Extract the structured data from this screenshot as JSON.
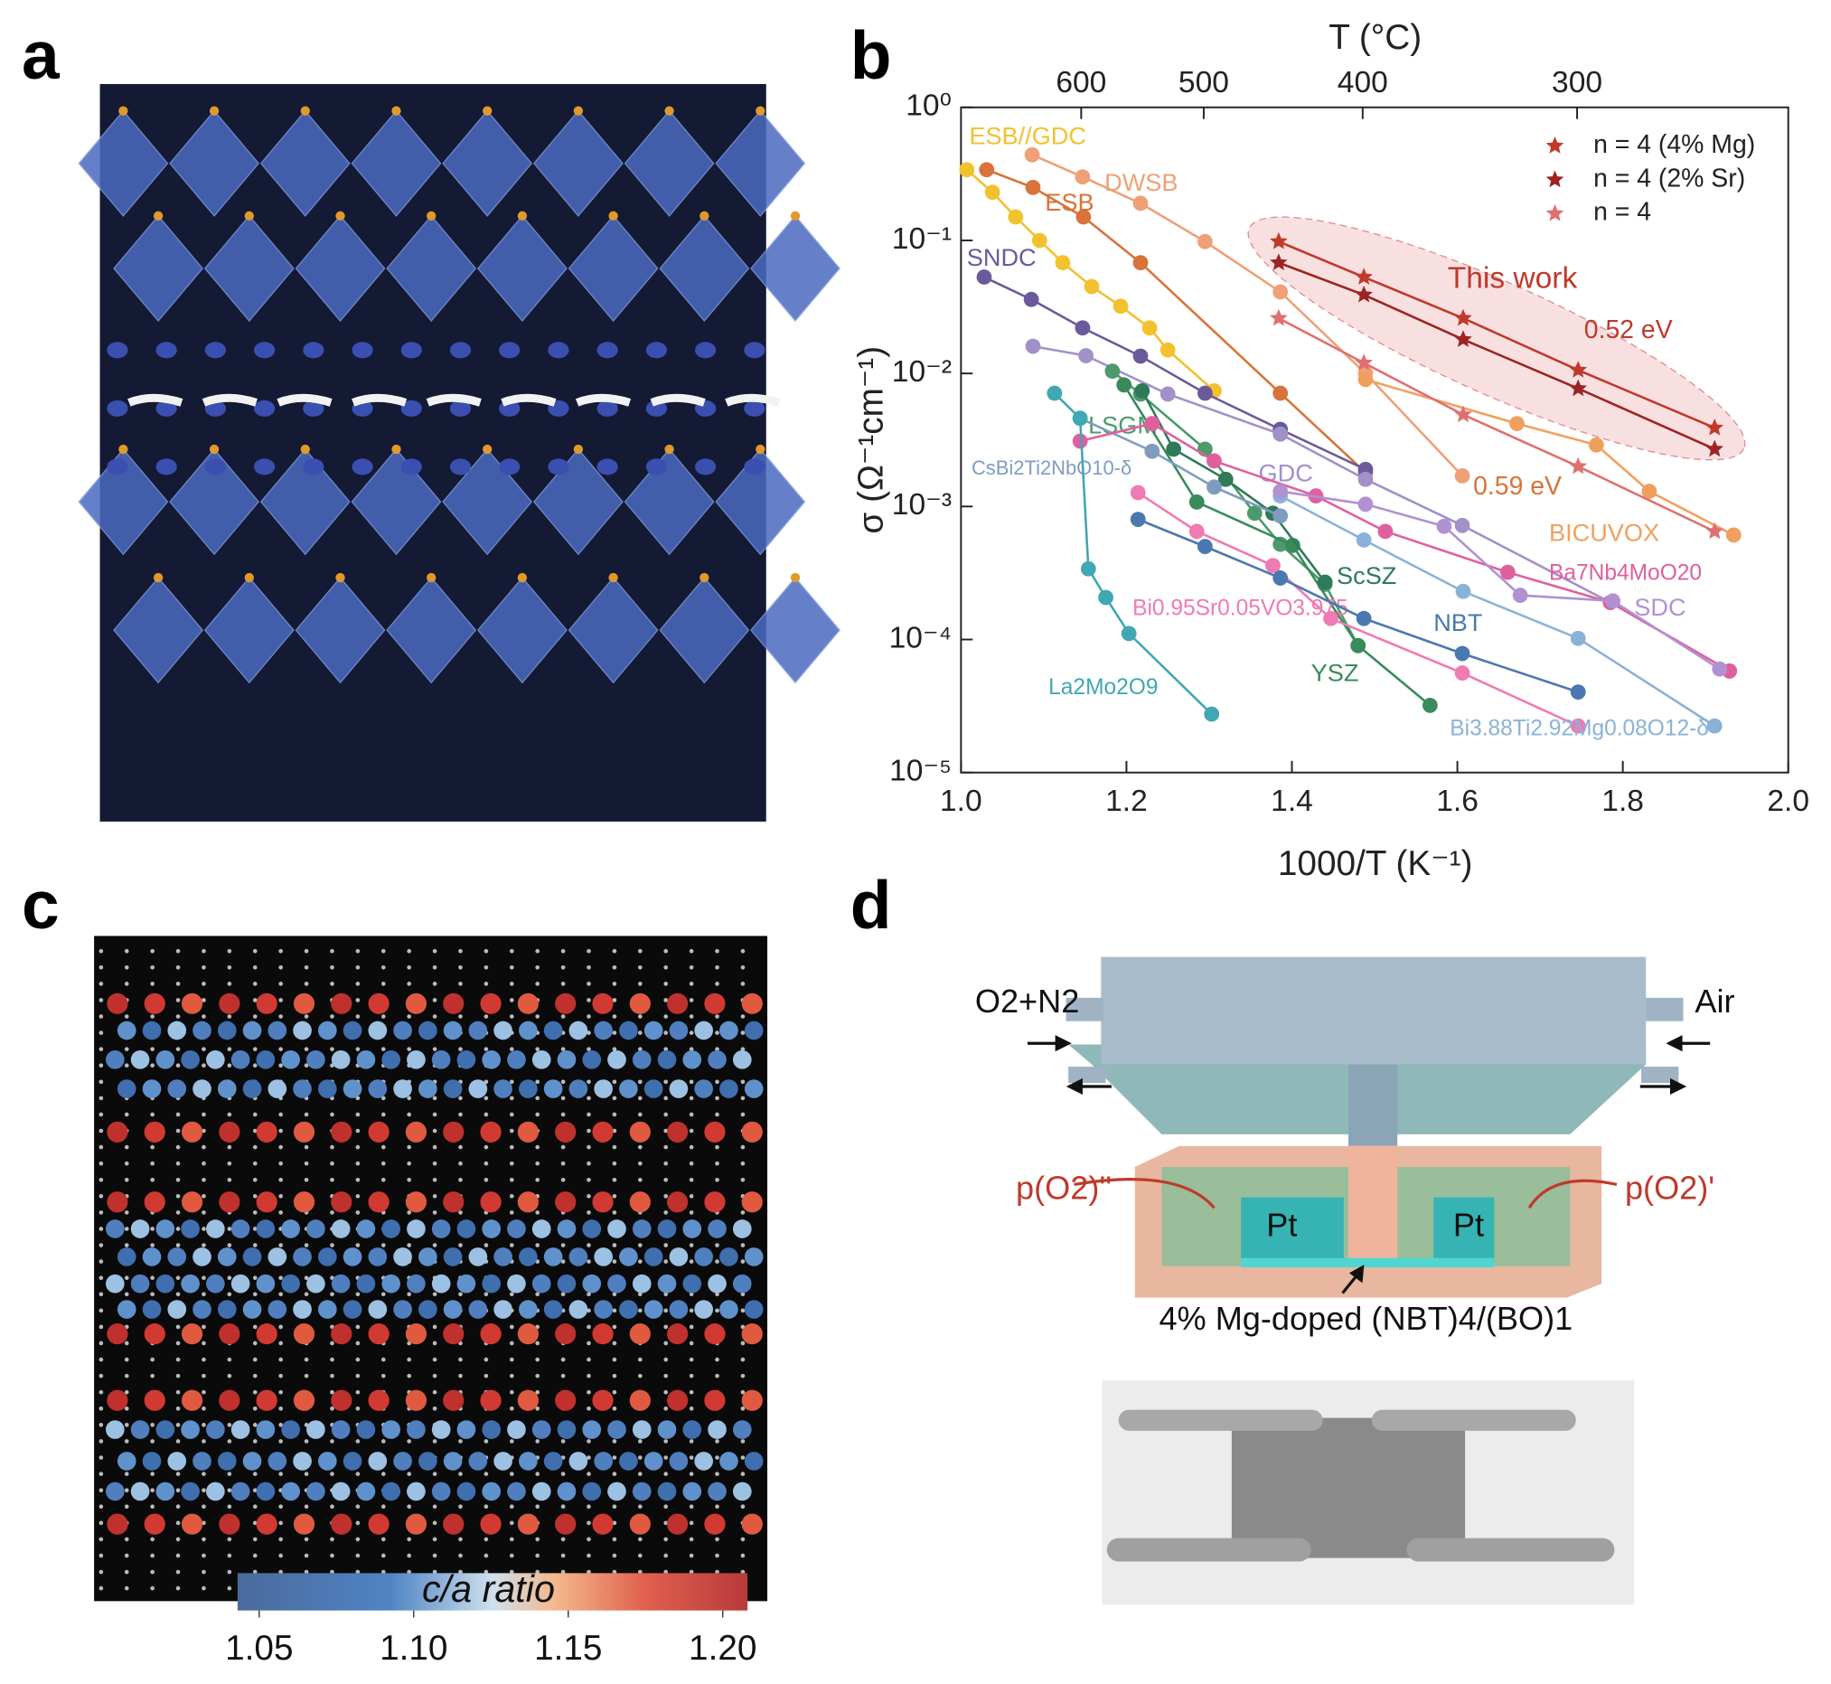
{
  "panel_labels": [
    "a",
    "b",
    "c",
    "d"
  ],
  "chart_data": {
    "type": "line",
    "log_y": true,
    "xlabel": "1000/T (K⁻¹)",
    "ylabel": "σ (Ω⁻¹cm⁻¹)",
    "x2label": "T (°C)",
    "xlim": [
      1,
      2
    ],
    "ylim": [
      1e-05,
      1
    ],
    "xticks": [
      {
        "value": 1,
        "label": "1.0"
      },
      1.2,
      1.4,
      1.6,
      1.8,
      {
        "value": 2,
        "label": "2.0"
      }
    ],
    "x2ticks": [
      600,
      500,
      400,
      300
    ],
    "yticks": [
      {
        "value": 1,
        "label": "10⁰"
      },
      {
        "value": 0.1,
        "label": "10⁻¹"
      },
      {
        "value": 0.01,
        "label": "10⁻²"
      },
      {
        "value": 0.001,
        "label": "10⁻³"
      },
      {
        "value": 0.0001,
        "label": "10⁻⁴"
      },
      {
        "value": 1e-05,
        "label": "10⁻⁵"
      }
    ],
    "legend": "upper right",
    "annotations": [
      "This work",
      "0.52 eV",
      "0.59 eV"
    ],
    "series": [
      {
        "name": "ESB//GDC",
        "color": "#f2c12e",
        "marker": "circle",
        "x": [
          1.007,
          1.038,
          1.066,
          1.095,
          1.123,
          1.158,
          1.193,
          1.228,
          1.25,
          1.306
        ],
        "values": [
          0.34,
          0.23,
          0.15,
          0.1,
          0.068,
          0.045,
          0.032,
          0.022,
          0.015,
          0.0074
        ]
      },
      {
        "name": "ESB",
        "color": "#d8733a",
        "marker": "circle",
        "x": [
          1.031,
          1.087,
          1.148,
          1.217,
          1.386,
          1.489
        ],
        "values": [
          0.34,
          0.25,
          0.15,
          0.068,
          0.0071,
          0.0018
        ]
      },
      {
        "name": "DWSB",
        "color": "#efa077",
        "marker": "circle",
        "x": [
          1.086,
          1.147,
          1.217,
          1.295,
          1.386,
          1.489,
          1.606
        ],
        "values": [
          0.44,
          0.3,
          0.19,
          0.098,
          0.041,
          0.01,
          0.0017
        ]
      },
      {
        "name": "SNDC",
        "color": "#6a5a9c",
        "marker": "circle",
        "x": [
          1.028,
          1.085,
          1.147,
          1.217,
          1.295,
          1.386,
          1.489
        ],
        "values": [
          0.053,
          0.036,
          0.022,
          0.0135,
          0.0071,
          0.0038,
          0.0019
        ]
      },
      {
        "name": "GDC",
        "color": "#a290c8",
        "marker": "circle",
        "x": [
          1.087,
          1.151,
          1.25,
          1.386,
          1.489,
          1.606,
          1.785,
          1.929
        ],
        "values": [
          0.016,
          0.0136,
          0.007,
          0.0035,
          0.0016,
          0.00072,
          0.00019,
          5.8e-05
        ]
      },
      {
        "name": "LSGM",
        "color": "#4c9a6c",
        "marker": "circle",
        "x": [
          1.183,
          1.217,
          1.295,
          1.355,
          1.386,
          1.44,
          1.48
        ],
        "values": [
          0.0104,
          0.007,
          0.0027,
          0.00089,
          0.00052,
          0.00026,
          9e-05
        ]
      },
      {
        "name": "YSZ",
        "color": "#3a8a5c",
        "marker": "circle",
        "x": [
          1.197,
          1.285,
          1.401,
          1.48,
          1.567
        ],
        "values": [
          0.0082,
          0.00108,
          0.00051,
          9e-05,
          3.2e-05
        ]
      },
      {
        "name": "ScSZ",
        "color": "#2f7a58",
        "marker": "circle",
        "x": [
          1.219,
          1.257,
          1.32,
          1.377,
          1.44
        ],
        "values": [
          0.0074,
          0.0027,
          0.0016,
          0.00089,
          0.00027
        ]
      },
      {
        "name": "CsBi2Ti2NbO10-δ",
        "color": "#7f9cc0",
        "marker": "circle",
        "x": [
          1.144,
          1.231,
          1.306,
          1.386
        ],
        "values": [
          0.0046,
          0.0026,
          0.0014,
          0.00085
        ]
      },
      {
        "name": "Ba7Nb4MoO20",
        "color": "#e0609e",
        "marker": "circle",
        "x": [
          1.144,
          1.231,
          1.306,
          1.429,
          1.513,
          1.661,
          1.785,
          1.929
        ],
        "values": [
          0.0031,
          0.0042,
          0.0022,
          0.0012,
          0.00065,
          0.00032,
          0.00019,
          5.8e-05
        ]
      },
      {
        "name": "Bi0.95Sr0.05VO3.975",
        "color": "#f07ab2",
        "marker": "circle",
        "x": [
          1.214,
          1.285,
          1.377,
          1.447,
          1.606,
          1.746
        ],
        "values": [
          0.00127,
          0.00065,
          0.00036,
          0.000144,
          5.6e-05,
          2.24e-05
        ]
      },
      {
        "name": "NBT",
        "color": "#4a78b0",
        "marker": "circle",
        "x": [
          1.214,
          1.295,
          1.386,
          1.487,
          1.606,
          1.746
        ],
        "values": [
          0.0008,
          0.0005,
          0.00029,
          0.000144,
          7.85e-05,
          4.03e-05
        ]
      },
      {
        "name": "Bi3.88Ti2.92Mg0.08O12-δ",
        "color": "#8ab2d8",
        "marker": "circle",
        "x": [
          1.386,
          1.487,
          1.607,
          1.746,
          1.911
        ],
        "values": [
          0.0012,
          0.00056,
          0.00023,
          0.000102,
          2.24e-05
        ]
      },
      {
        "name": "SDC",
        "color": "#b092d2",
        "marker": "circle",
        "x": [
          1.386,
          1.489,
          1.584,
          1.676,
          1.788,
          1.917
        ],
        "values": [
          0.0013,
          0.00104,
          0.00071,
          0.000215,
          0.000195,
          6e-05
        ]
      },
      {
        "name": "La2Mo2O9",
        "color": "#3fa8b2",
        "marker": "circle",
        "x": [
          1.113,
          1.144,
          1.154,
          1.175,
          1.203,
          1.303
        ],
        "values": [
          0.0071,
          0.0046,
          0.00034,
          0.000207,
          0.000111,
          2.75e-05
        ]
      },
      {
        "name": "BICUVOX",
        "color": "#f0a05e",
        "marker": "circle",
        "x": [
          1.489,
          1.672,
          1.768,
          1.832,
          1.934
        ],
        "values": [
          0.009,
          0.0042,
          0.0029,
          0.0013,
          0.00061
        ]
      },
      {
        "name": "n = 4 (4% Mg)",
        "color": "#c0392b",
        "marker": "star",
        "x": [
          1.384,
          1.487,
          1.607,
          1.746,
          1.911
        ],
        "values": [
          0.098,
          0.053,
          0.026,
          0.0106,
          0.0039
        ]
      },
      {
        "name": "n = 4 (2% Sr)",
        "color": "#9c2424",
        "marker": "star",
        "x": [
          1.384,
          1.487,
          1.607,
          1.746,
          1.911
        ],
        "values": [
          0.068,
          0.039,
          0.018,
          0.0077,
          0.0027
        ]
      },
      {
        "name": "n = 4",
        "color": "#e07070",
        "marker": "star",
        "x": [
          1.384,
          1.487,
          1.607,
          1.746,
          1.911
        ],
        "values": [
          0.026,
          0.012,
          0.0049,
          0.002,
          0.00065
        ]
      }
    ]
  },
  "colorbar": {
    "label": "c/a ratio",
    "lim": [
      1.043,
      1.208
    ],
    "ticks": [
      1.05,
      {
        "value": 1.1,
        "label": "1.10"
      },
      1.15,
      {
        "value": 1.2,
        "label": "1.20"
      }
    ]
  },
  "diagram": {
    "inlet_left": "O2+N2",
    "inlet_right": "Air",
    "pressure_left": "p(O2)''",
    "pressure_right": "p(O2)'",
    "electrodes": [
      "Pt",
      "Pt"
    ],
    "sample": "4% Mg-doped (NBT)4/(BO)1"
  }
}
